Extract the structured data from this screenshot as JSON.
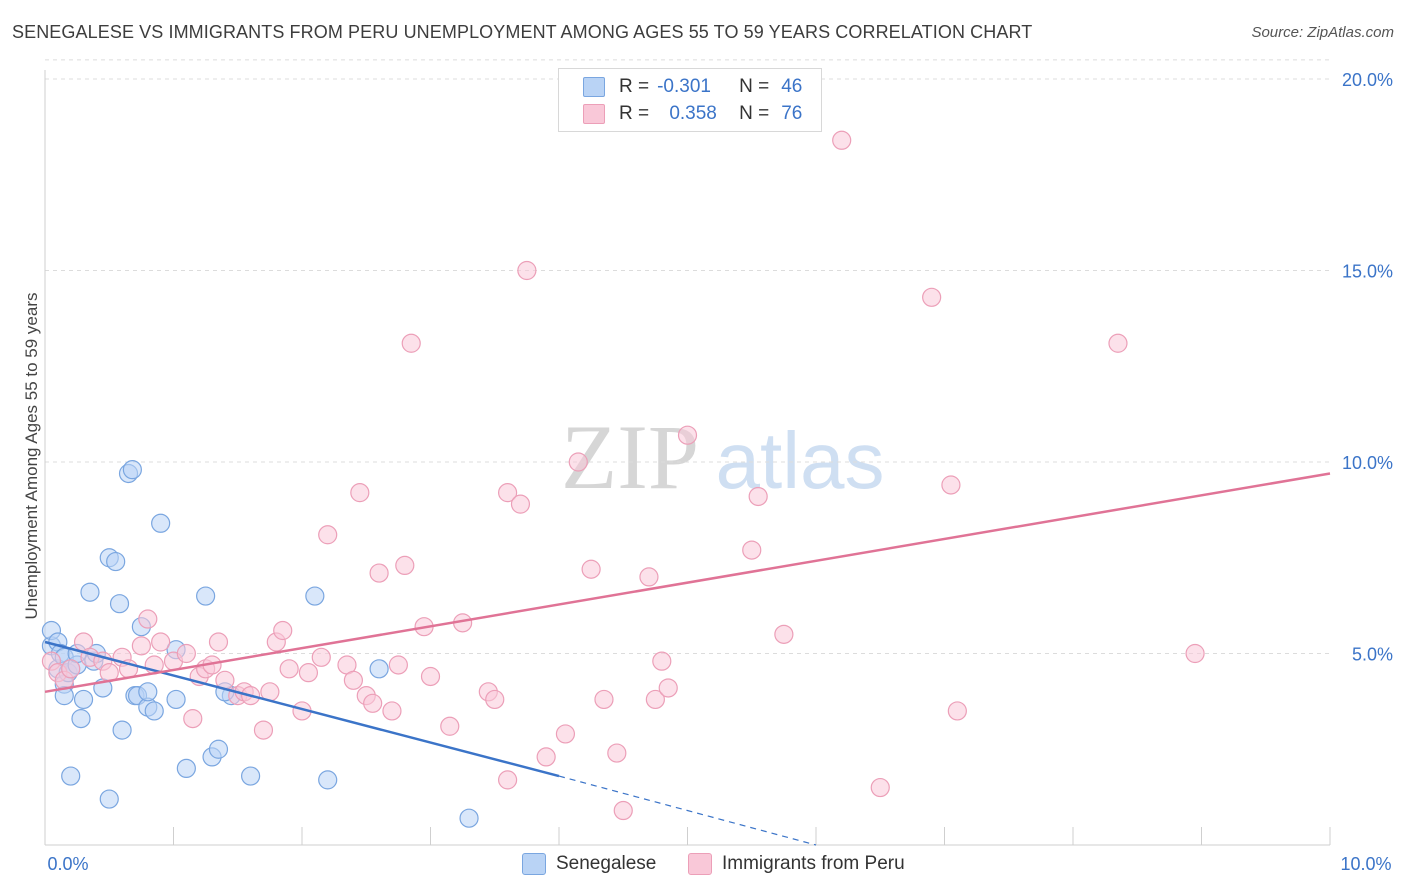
{
  "title": "SENEGALESE VS IMMIGRANTS FROM PERU UNEMPLOYMENT AMONG AGES 55 TO 59 YEARS CORRELATION CHART",
  "source": "Source: ZipAtlas.com",
  "watermark": {
    "zip": "ZIP",
    "atlas": "atlas"
  },
  "legend": {
    "r_label": "R =",
    "n_label": "N =",
    "series": [
      {
        "name": "Senegalese",
        "r": "-0.301",
        "n": "46",
        "fill": "#b9d3f5",
        "stroke": "#7aa6e0"
      },
      {
        "name": "Immigrants from Peru",
        "r": "0.358",
        "n": "76",
        "fill": "#f9c8d8",
        "stroke": "#ec9fb8"
      }
    ]
  },
  "chart_data": {
    "type": "scatter",
    "title": "SENEGALESE VS IMMIGRANTS FROM PERU UNEMPLOYMENT AMONG AGES 55 TO 59 YEARS CORRELATION CHART",
    "xlabel": "",
    "ylabel": "Unemployment Among Ages 55 to 59 years",
    "xlim": [
      0,
      10
    ],
    "ylim": [
      0,
      20.5
    ],
    "x_tick_labels": [
      {
        "value": 0,
        "label": "0.0%"
      },
      {
        "value": 10,
        "label": "10.0%"
      }
    ],
    "y_tick_labels": [
      {
        "value": 5,
        "label": "5.0%"
      },
      {
        "value": 10,
        "label": "10.0%"
      },
      {
        "value": 15,
        "label": "15.0%"
      },
      {
        "value": 20,
        "label": "20.0%"
      }
    ],
    "grid": true,
    "series": [
      {
        "name": "Senegalese",
        "color": "#3b74c8",
        "points": [
          [
            0.05,
            5.2
          ],
          [
            0.05,
            5.6
          ],
          [
            0.1,
            5.3
          ],
          [
            0.1,
            4.6
          ],
          [
            0.12,
            5.0
          ],
          [
            0.15,
            4.2
          ],
          [
            0.15,
            4.9
          ],
          [
            0.18,
            4.5
          ],
          [
            0.2,
            4.6
          ],
          [
            0.25,
            4.7
          ],
          [
            0.25,
            5.0
          ],
          [
            0.28,
            3.3
          ],
          [
            0.35,
            6.6
          ],
          [
            0.38,
            4.8
          ],
          [
            0.4,
            5.0
          ],
          [
            0.45,
            4.1
          ],
          [
            0.5,
            7.5
          ],
          [
            0.55,
            7.4
          ],
          [
            0.58,
            6.3
          ],
          [
            0.6,
            3.0
          ],
          [
            0.65,
            9.7
          ],
          [
            0.68,
            9.8
          ],
          [
            0.7,
            3.9
          ],
          [
            0.72,
            3.9
          ],
          [
            0.75,
            5.7
          ],
          [
            0.8,
            3.6
          ],
          [
            0.8,
            4.0
          ],
          [
            0.85,
            3.5
          ],
          [
            0.9,
            8.4
          ],
          [
            1.02,
            3.8
          ],
          [
            1.02,
            5.1
          ],
          [
            1.1,
            2.0
          ],
          [
            1.25,
            6.5
          ],
          [
            1.3,
            2.3
          ],
          [
            1.35,
            2.5
          ],
          [
            1.45,
            3.9
          ],
          [
            1.6,
            1.8
          ],
          [
            2.1,
            6.5
          ],
          [
            2.2,
            1.7
          ],
          [
            2.6,
            4.6
          ],
          [
            0.15,
            3.9
          ],
          [
            0.3,
            3.8
          ],
          [
            0.2,
            1.8
          ],
          [
            0.5,
            1.2
          ],
          [
            3.3,
            0.7
          ],
          [
            1.4,
            4.0
          ]
        ],
        "trend": {
          "x0": 0,
          "y0": 5.3,
          "x1": 4,
          "y1": 1.8,
          "dash_x1": 6,
          "dash_y1": 0.0
        }
      },
      {
        "name": "Immigrants from Peru",
        "color": "#e07396",
        "points": [
          [
            0.05,
            4.8
          ],
          [
            0.1,
            4.5
          ],
          [
            0.15,
            4.3
          ],
          [
            0.2,
            4.6
          ],
          [
            0.3,
            5.3
          ],
          [
            0.35,
            4.9
          ],
          [
            0.45,
            4.8
          ],
          [
            0.5,
            4.5
          ],
          [
            0.6,
            4.9
          ],
          [
            0.65,
            4.6
          ],
          [
            0.75,
            5.2
          ],
          [
            0.8,
            5.9
          ],
          [
            0.85,
            4.7
          ],
          [
            0.9,
            5.3
          ],
          [
            1.0,
            4.8
          ],
          [
            1.1,
            5.0
          ],
          [
            1.15,
            3.3
          ],
          [
            1.2,
            4.4
          ],
          [
            1.25,
            4.6
          ],
          [
            1.3,
            4.7
          ],
          [
            1.35,
            5.3
          ],
          [
            1.4,
            4.3
          ],
          [
            1.5,
            3.9
          ],
          [
            1.55,
            4.0
          ],
          [
            1.6,
            3.9
          ],
          [
            1.7,
            3.0
          ],
          [
            1.75,
            4.0
          ],
          [
            1.8,
            5.3
          ],
          [
            1.85,
            5.6
          ],
          [
            1.9,
            4.6
          ],
          [
            2.0,
            3.5
          ],
          [
            2.05,
            4.5
          ],
          [
            2.15,
            4.9
          ],
          [
            2.2,
            8.1
          ],
          [
            2.35,
            4.7
          ],
          [
            2.4,
            4.3
          ],
          [
            2.45,
            9.2
          ],
          [
            2.5,
            3.9
          ],
          [
            2.55,
            3.7
          ],
          [
            2.6,
            7.1
          ],
          [
            2.7,
            3.5
          ],
          [
            2.75,
            4.7
          ],
          [
            2.8,
            7.3
          ],
          [
            2.85,
            13.1
          ],
          [
            2.95,
            5.7
          ],
          [
            3.0,
            4.4
          ],
          [
            3.15,
            3.1
          ],
          [
            3.25,
            5.8
          ],
          [
            3.45,
            4.0
          ],
          [
            3.5,
            3.8
          ],
          [
            3.6,
            9.2
          ],
          [
            3.7,
            8.9
          ],
          [
            3.75,
            15.0
          ],
          [
            3.9,
            2.3
          ],
          [
            4.05,
            2.9
          ],
          [
            4.15,
            10.0
          ],
          [
            4.25,
            7.2
          ],
          [
            4.35,
            3.8
          ],
          [
            4.45,
            2.4
          ],
          [
            4.5,
            0.9
          ],
          [
            4.7,
            7.0
          ],
          [
            4.75,
            3.8
          ],
          [
            4.8,
            4.8
          ],
          [
            4.85,
            4.1
          ],
          [
            5.0,
            10.7
          ],
          [
            5.5,
            7.7
          ],
          [
            5.55,
            9.1
          ],
          [
            5.75,
            5.5
          ],
          [
            6.2,
            18.4
          ],
          [
            6.5,
            1.5
          ],
          [
            6.9,
            14.3
          ],
          [
            7.05,
            9.4
          ],
          [
            7.1,
            3.5
          ],
          [
            8.35,
            13.1
          ],
          [
            8.95,
            5.0
          ],
          [
            3.6,
            1.7
          ]
        ],
        "trend": {
          "x0": 0,
          "y0": 4.0,
          "x1": 10,
          "y1": 9.7
        }
      }
    ]
  }
}
